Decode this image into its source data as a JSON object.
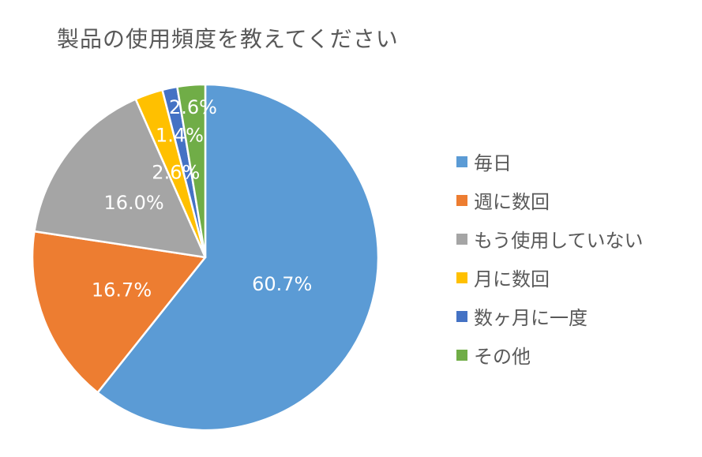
{
  "chart_data": {
    "type": "pie",
    "title": "製品の使用頻度を教えてください",
    "legend_position": "right",
    "start_angle": "12 o'clock",
    "direction": "clockwise",
    "slices": [
      {
        "label": "毎日",
        "value": 60.7,
        "display": "60.7%",
        "color": "#5B9BD5"
      },
      {
        "label": "週に数回",
        "value": 16.7,
        "display": "16.7%",
        "color": "#ED7D31"
      },
      {
        "label": "もう使用していない",
        "value": 16.0,
        "display": "16.0%",
        "color": "#A5A5A5"
      },
      {
        "label": "月に数回",
        "value": 2.6,
        "display": "2.6%",
        "color": "#FFC000"
      },
      {
        "label": "数ヶ月に一度",
        "value": 1.4,
        "display": "1.4%",
        "color": "#4472C4"
      },
      {
        "label": "その他",
        "value": 2.6,
        "display": "2.6%",
        "color": "#70AD47"
      }
    ]
  }
}
